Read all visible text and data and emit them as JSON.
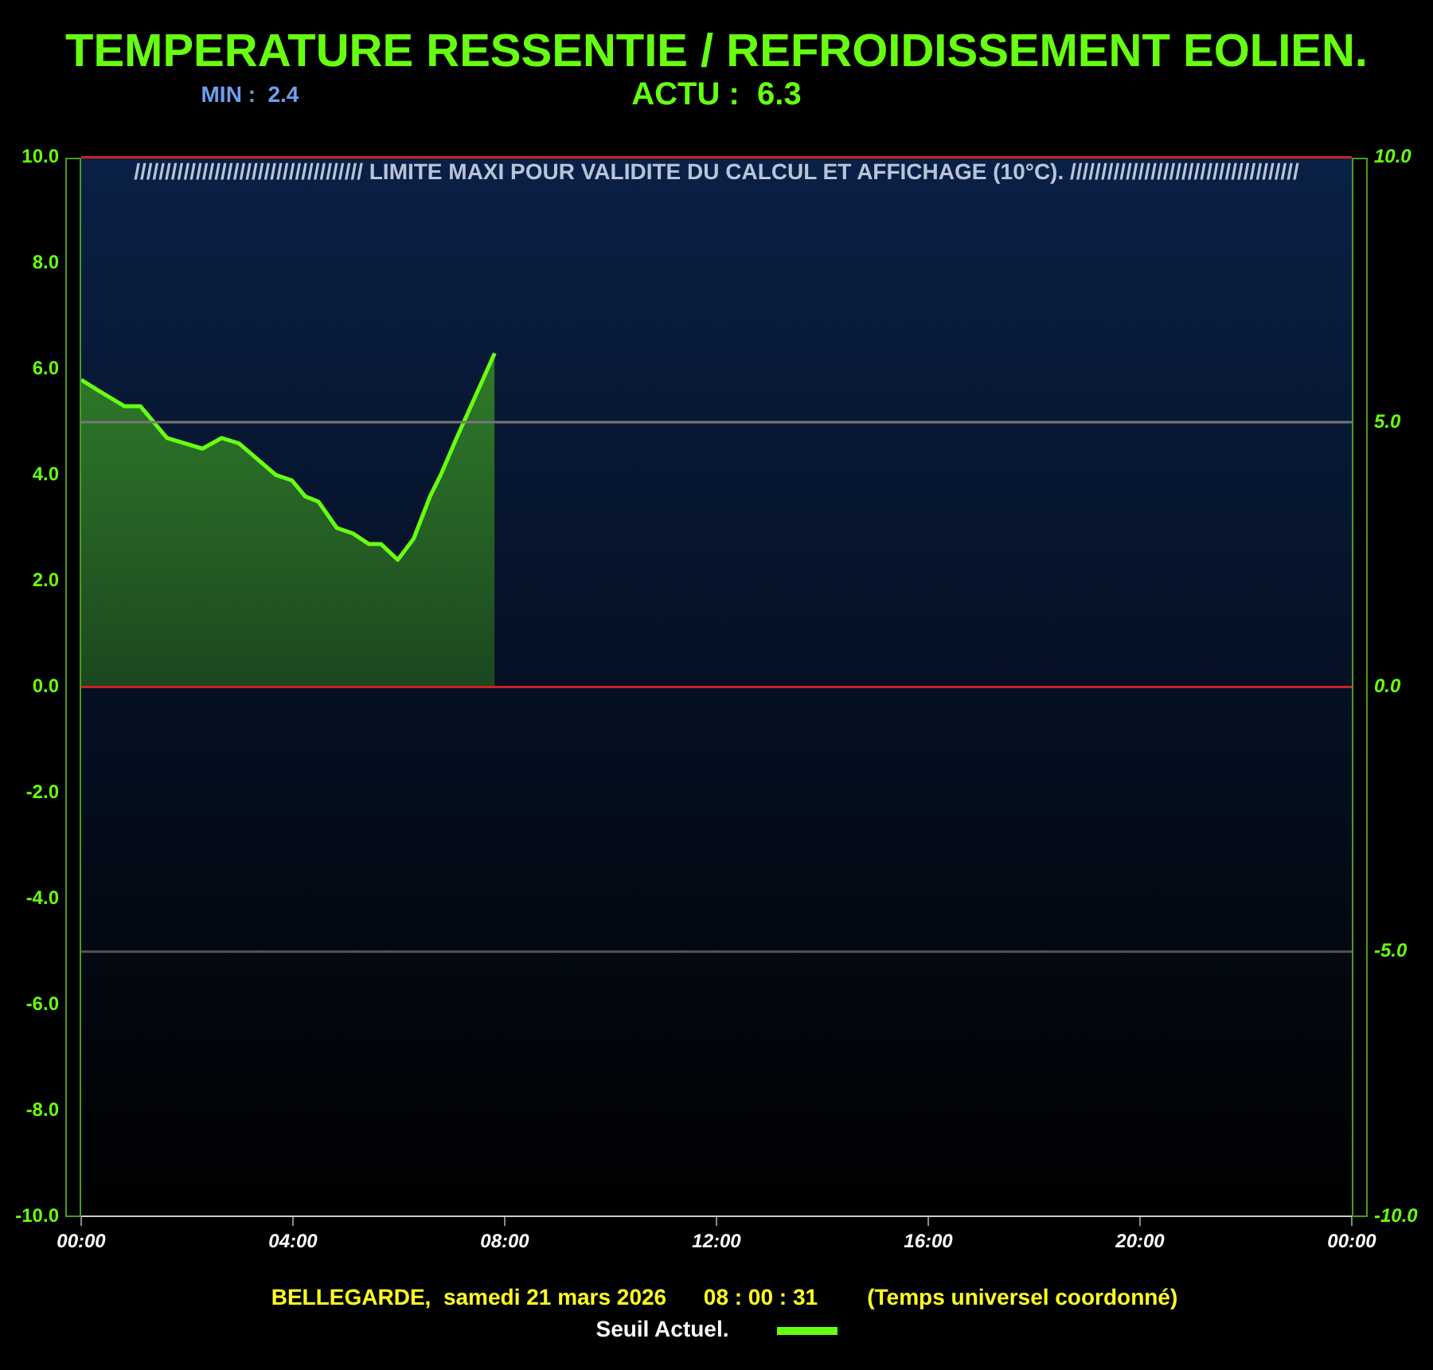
{
  "chart_data": {
    "type": "area",
    "title": "TEMPERATURE RESSENTIE / REFROIDISSEMENT EOLIEN.",
    "annotations": [
      "MIN :  2.4",
      "ACTU :  6.3",
      "BELLEGARDE,  samedi 21 mars 2026      08 : 00 : 31        (Temps universel coordonné)"
    ],
    "x": [
      0,
      0.32,
      0.82,
      1.12,
      1.62,
      2.29,
      2.65,
      2.98,
      3.68,
      3.98,
      4.23,
      4.48,
      4.83,
      5.13,
      5.43,
      5.66,
      5.98,
      6.28,
      6.59,
      6.79,
      7.09,
      7.81
    ],
    "series": [
      {
        "name": "Seuil Actuel.",
        "color": "#66ff11",
        "values": [
          5.8,
          5.6,
          5.3,
          5.3,
          4.7,
          4.5,
          4.7,
          4.6,
          4.0,
          3.9,
          3.6,
          3.5,
          3.0,
          2.9,
          2.7,
          2.7,
          2.4,
          2.8,
          3.6,
          4.0,
          4.7,
          6.3
        ]
      }
    ],
    "xlim": [
      0,
      24
    ],
    "xticks": [
      {
        "value": 0,
        "label": "00:00"
      },
      {
        "value": 4,
        "label": "04:00"
      },
      {
        "value": 8,
        "label": "08:00"
      },
      {
        "value": 12,
        "label": "12:00"
      },
      {
        "value": 16,
        "label": "16:00"
      },
      {
        "value": 20,
        "label": "20:00"
      },
      {
        "value": 24,
        "label": "00:00"
      }
    ],
    "ylim": [
      -10,
      10
    ],
    "yticks": [
      {
        "value": -10,
        "label": "-10.0"
      },
      {
        "value": -8,
        "label": "-8.0"
      },
      {
        "value": -6,
        "label": "-6.0"
      },
      {
        "value": -4,
        "label": "-4.0"
      },
      {
        "value": -2,
        "label": "-2.0"
      },
      {
        "value": 0,
        "label": "0.0"
      },
      {
        "value": 2,
        "label": "2.0"
      },
      {
        "value": 4,
        "label": "4.0"
      },
      {
        "value": 6,
        "label": "6.0"
      },
      {
        "value": 8,
        "label": "8.0"
      },
      {
        "value": 10,
        "label": "10.0"
      }
    ],
    "y2lim": [
      -10,
      10
    ],
    "y2ticks": [
      {
        "value": -10,
        "label": "-10.0"
      },
      {
        "value": -5,
        "label": "-5.0"
      },
      {
        "value": 0,
        "label": "0.0"
      },
      {
        "value": 5,
        "label": "5.0"
      },
      {
        "value": 10,
        "label": "10.0"
      }
    ],
    "ref_lines": [
      {
        "axis": "y",
        "value": 10,
        "label": "///////////////////////////////////// LIMITE MAXI POUR VALIDITE DU CALCUL ET AFFICHAGE (10°C). /////////////////////////////////////",
        "color": "#cc2222"
      },
      {
        "axis": "y",
        "value": 0,
        "color": "#cc2222"
      },
      {
        "axis": "y",
        "value": 5,
        "color": "#777777"
      },
      {
        "axis": "y",
        "value": -5,
        "color": "#555555"
      }
    ],
    "grid": false,
    "legend": "bottom",
    "marker": "none",
    "line_style": "solid"
  }
}
